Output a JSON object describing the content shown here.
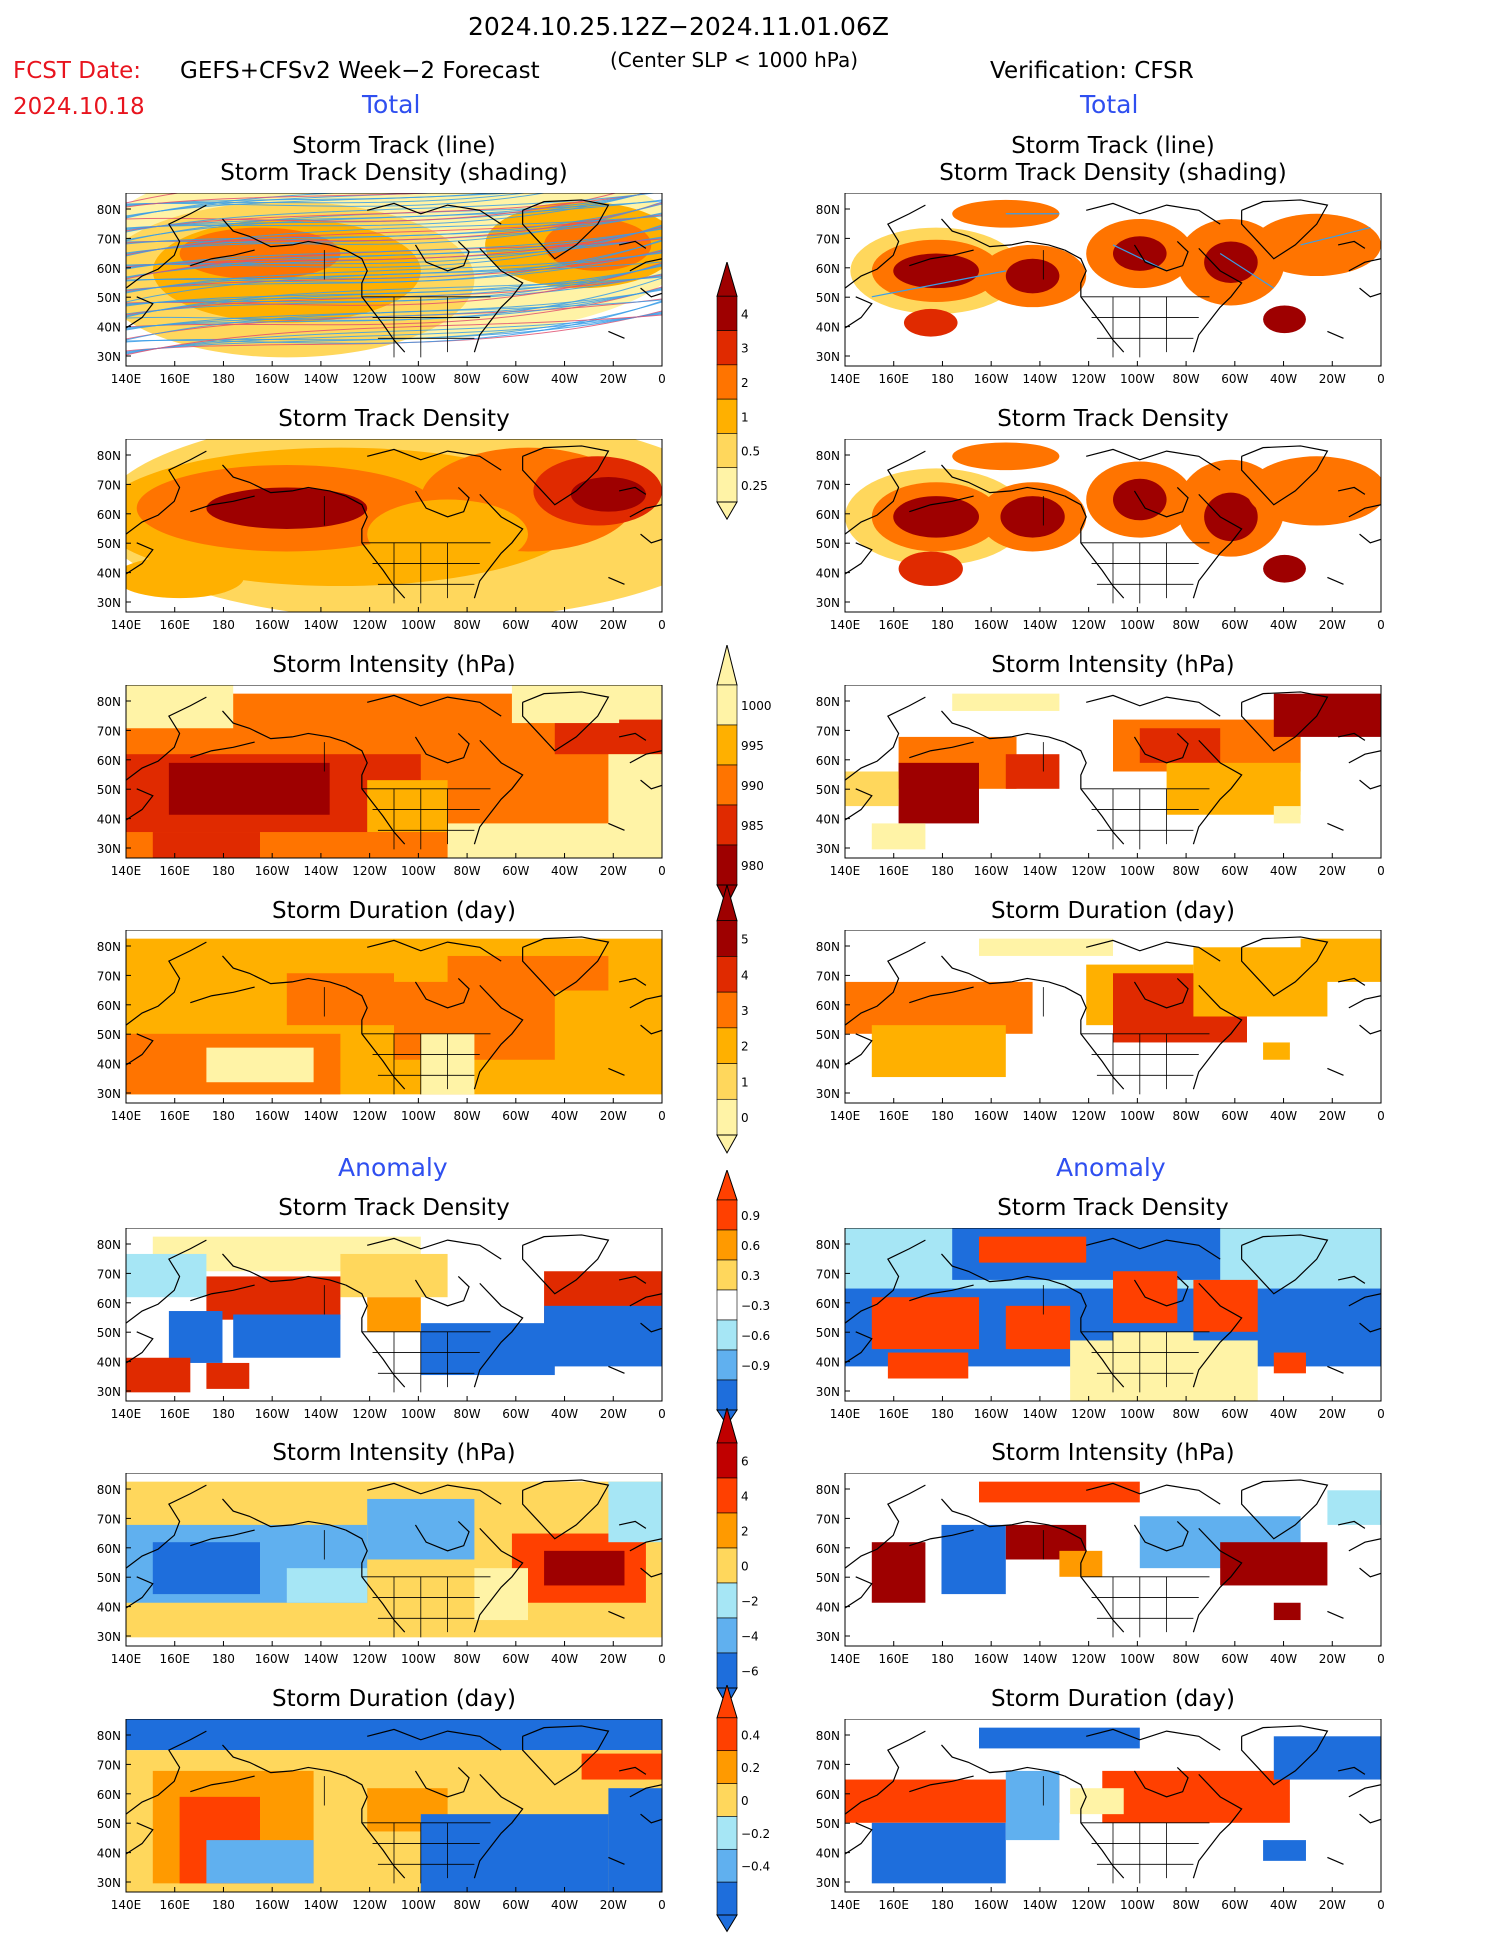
{
  "header": {
    "period": "2024.10.25.12Z−2024.11.01.06Z",
    "fcst_date_label": "FCST Date:",
    "fcst_date": "2024.10.18",
    "forecast_label": "GEFS+CFSv2 Week−2 Forecast",
    "slp_note": "(Center SLP < 1000 hPa)",
    "verification_label": "Verification: CFSR"
  },
  "sections": {
    "total": "Total",
    "anomaly": "Anomaly"
  },
  "panel_titles": {
    "track_line": "Storm Track (line)",
    "track_density_shading": "Storm Track Density (shading)",
    "track_density": "Storm Track Density",
    "intensity": "Storm Intensity (hPa)",
    "duration": "Storm Duration (day)"
  },
  "axes": {
    "lat_labels": [
      "80N",
      "70N",
      "60N",
      "50N",
      "40N",
      "30N"
    ],
    "lon_labels": [
      "140E",
      "160E",
      "180",
      "160W",
      "140W",
      "120W",
      "100W",
      "80W",
      "60W",
      "40W",
      "20W",
      "0"
    ]
  },
  "colorbars": {
    "density": {
      "labels": [
        "4",
        "3",
        "2",
        "1",
        "0.5",
        "0.25"
      ],
      "colors": [
        "#9e0000",
        "#e02a00",
        "#ff7400",
        "#ffb000",
        "#ffd75c",
        "#fff3a6"
      ]
    },
    "intensity": {
      "labels": [
        "1000",
        "995",
        "990",
        "985",
        "980"
      ],
      "colors": [
        "#fff3a6",
        "#ffb000",
        "#ff7400",
        "#e02a00",
        "#9e0000"
      ]
    },
    "duration": {
      "labels": [
        "5",
        "4",
        "3",
        "2",
        "1",
        "0"
      ],
      "colors": [
        "#9e0000",
        "#e02a00",
        "#ff7400",
        "#ffb000",
        "#ffd75c",
        "#fff3a6"
      ]
    },
    "anom_density": {
      "labels": [
        "0.9",
        "0.6",
        "0.3",
        "−0.3",
        "−0.6",
        "−0.9"
      ],
      "colors": [
        "#ff4000",
        "#ff9a00",
        "#ffd75c",
        "#ffffff",
        "#a6e6f5",
        "#60b0ef",
        "#1e6edc"
      ]
    },
    "anom_intensity": {
      "labels": [
        "6",
        "4",
        "2",
        "0",
        "−2",
        "−4",
        "−6"
      ],
      "colors": [
        "#c00000",
        "#ff4000",
        "#ff9a00",
        "#ffd75c",
        "#a6e6f5",
        "#60b0ef",
        "#1e6edc"
      ]
    },
    "anom_duration": {
      "labels": [
        "0.4",
        "0.2",
        "0",
        "−0.2",
        "−0.4"
      ],
      "colors": [
        "#ff4000",
        "#ff9a00",
        "#ffd75c",
        "#a6e6f5",
        "#60b0ef",
        "#1e6edc"
      ]
    }
  }
}
